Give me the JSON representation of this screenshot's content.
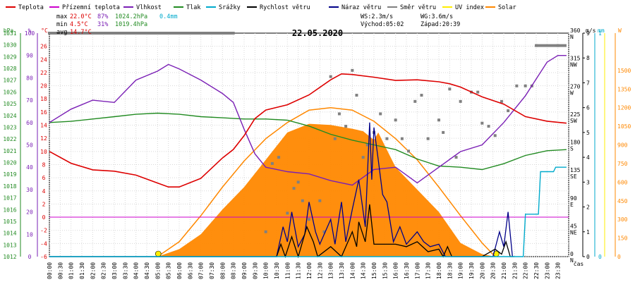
{
  "legend": [
    {
      "label": "Teplota",
      "color": "#dd0000"
    },
    {
      "label": "Přízemní teplota",
      "color": "#cc00cc"
    },
    {
      "label": "Vlhkost",
      "color": "#7a1fb5"
    },
    {
      "label": "Tlak",
      "color": "#228b22"
    },
    {
      "label": "Srážky",
      "color": "#00aacc"
    },
    {
      "label": "Rychlost větru",
      "color": "#000000"
    },
    {
      "label": "Náraz větru",
      "color": "#000088"
    },
    {
      "label": "Směr větru",
      "color": "#808080"
    },
    {
      "label": "UV index",
      "color": "#ffee00"
    },
    {
      "label": "Solar",
      "color": "#ff8800"
    }
  ],
  "stats": {
    "max": {
      "label": "max",
      "temp": "22.0°C",
      "hum": "87%",
      "press": "1024.2hPa",
      "rain": "0.4mm"
    },
    "min": {
      "label": "min",
      "temp": "4.5°C",
      "hum": "31%",
      "press": "1019.4hPa"
    },
    "avg": {
      "label": "avg",
      "temp": "14.7°C"
    }
  },
  "wind_info": {
    "ws": "WS:2.3m/s",
    "wg": "WG:3.6m/s",
    "sunrise": "Východ:05:02",
    "sunset": "Západ:20:39"
  },
  "date": "22.05.2020",
  "axis_units": {
    "hpa": "hPa",
    "pct": "%",
    "degc": "°C",
    "ms": "m/s",
    "mm": "mm",
    "w": "W",
    "time": "čas"
  },
  "colors": {
    "temp": "#dd0000",
    "hum": "#7a1fb5",
    "press": "#228b22",
    "rain": "#00aacc",
    "wind": "#000000",
    "gust": "#000088",
    "dir": "#808080",
    "solar": "#ff8800",
    "uv": "#ffee00",
    "zero": "#cc00cc"
  },
  "chart_data": {
    "type": "line",
    "x_label": "čas",
    "x_ticks": [
      "00:00",
      "00:30",
      "01:00",
      "01:30",
      "02:00",
      "02:30",
      "03:00",
      "03:30",
      "04:00",
      "04:30",
      "05:00",
      "05:30",
      "06:00",
      "06:30",
      "07:00",
      "07:30",
      "08:00",
      "08:30",
      "09:00",
      "09:30",
      "10:00",
      "10:30",
      "11:00",
      "11:30",
      "12:00",
      "12:30",
      "13:00",
      "13:30",
      "14:00",
      "14:30",
      "15:00",
      "15:30",
      "16:00",
      "16:30",
      "17:00",
      "17:30",
      "18:00",
      "18:30",
      "19:00",
      "19:30",
      "20:00",
      "20:30",
      "21:00",
      "21:30",
      "22:00",
      "22:30",
      "23:00",
      "23:30"
    ],
    "axes": {
      "pressure_hpa": {
        "range": [
          1012,
          1031
        ],
        "ticks": [
          1012,
          1013,
          1014,
          1015,
          1016,
          1017,
          1018,
          1019,
          1020,
          1021,
          1022,
          1023,
          1024,
          1025,
          1026,
          1027,
          1028,
          1029,
          1030,
          1031
        ]
      },
      "humidity_pct": {
        "range": [
          0,
          100
        ],
        "ticks": [
          0,
          10,
          20,
          30,
          40,
          50,
          60,
          70,
          80,
          90,
          100
        ]
      },
      "temperature_c": {
        "range": [
          -6,
          28
        ],
        "ticks": [
          -6,
          -4,
          -2,
          0,
          2,
          4,
          6,
          8,
          10,
          12,
          14,
          16,
          18,
          20,
          22,
          24,
          26
        ]
      },
      "wind_dir": {
        "ticks": [
          {
            "v": 0,
            "l": "N"
          },
          {
            "v": 45,
            "l": "NE"
          },
          {
            "v": 90,
            "l": "E"
          },
          {
            "v": 135,
            "l": "SE"
          },
          {
            "v": 180,
            "l": "S"
          },
          {
            "v": 225,
            "l": "SW"
          },
          {
            "v": 270,
            "l": "W"
          },
          {
            "v": 315,
            "l": "NW"
          },
          {
            "v": 360,
            "l": "N"
          }
        ]
      },
      "wind_ms": {
        "range": [
          0,
          9
        ],
        "ticks": [
          0,
          1,
          2,
          3,
          4,
          5,
          6,
          7,
          8,
          9
        ]
      },
      "rain_mm": {
        "range": [
          0,
          1
        ],
        "ticks": [
          0,
          1
        ]
      },
      "solar_w": {
        "range": [
          0,
          1800
        ],
        "ticks": [
          0,
          150,
          300,
          450,
          600,
          750,
          900,
          1050,
          1200,
          1350,
          1500
        ]
      }
    },
    "series": [
      {
        "name": "Teplota",
        "unit": "°C",
        "t": [
          0,
          1,
          2,
          3,
          4,
          5,
          5.5,
          6,
          7,
          8,
          8.5,
          9,
          9.5,
          10,
          11,
          12,
          13,
          13.5,
          14,
          15,
          16,
          17,
          18,
          18.5,
          19,
          20,
          21,
          22,
          23,
          23.9
        ],
        "y": [
          10,
          8.2,
          7.2,
          7,
          6.4,
          5.2,
          4.6,
          4.6,
          5.9,
          9,
          10.3,
          12.4,
          15,
          16.3,
          17.1,
          18.6,
          20.9,
          21.8,
          21.7,
          21.3,
          20.8,
          20.9,
          20.6,
          20.3,
          19.8,
          18.3,
          17.2,
          15.3,
          14.6,
          14.3
        ]
      },
      {
        "name": "Vlhkost",
        "unit": "%",
        "t": [
          0,
          1,
          2,
          3,
          4,
          5,
          5.5,
          6,
          7,
          8,
          8.5,
          9,
          9.5,
          10,
          11,
          12,
          13,
          14,
          15,
          16,
          17,
          18,
          19,
          20,
          21,
          22,
          23,
          23.5,
          23.9
        ],
        "y": [
          60,
          66,
          70,
          69,
          79,
          83,
          86,
          84,
          79,
          73,
          69,
          57,
          46,
          40,
          38,
          37,
          34,
          32,
          39,
          40,
          33,
          40,
          47,
          50,
          60,
          72,
          87,
          90,
          90
        ]
      },
      {
        "name": "Tlak",
        "unit": "hPa",
        "t": [
          0,
          1,
          2,
          3,
          4,
          5,
          6,
          7,
          8,
          9,
          10,
          11,
          12,
          13,
          14,
          15,
          16,
          17,
          18,
          19,
          20,
          21,
          22,
          23,
          23.9
        ],
        "y": [
          1023.4,
          1023.5,
          1023.7,
          1023.9,
          1024.1,
          1024.2,
          1024.1,
          1023.9,
          1023.8,
          1023.7,
          1023.7,
          1023.6,
          1023.1,
          1022.4,
          1021.9,
          1021.5,
          1021.1,
          1020.3,
          1019.7,
          1019.6,
          1019.4,
          1019.9,
          1020.6,
          1021,
          1021.1
        ]
      },
      {
        "name": "Srážky",
        "unit": "mm",
        "t": [
          0,
          21.5,
          21.9,
          22,
          22.6,
          22.7,
          23.3,
          23.4,
          23.9
        ],
        "y": [
          0,
          0,
          0,
          0.19,
          0.19,
          0.38,
          0.38,
          0.4,
          0.4
        ]
      },
      {
        "name": "Rychlost větru",
        "unit": "m/s",
        "t": [
          0,
          10.5,
          10.7,
          10.9,
          11.2,
          11.5,
          11.9,
          12.2,
          12.4,
          13,
          13.5,
          14,
          14.2,
          14.3,
          14.6,
          14.8,
          15,
          15.1,
          15.5,
          16,
          16.5,
          17,
          17.5,
          18,
          18.2,
          18.4,
          18.6,
          19,
          20,
          20.6,
          20.9,
          21.1,
          21.3,
          21.5
        ],
        "y": [
          0,
          0,
          0.5,
          0,
          0.8,
          0,
          1.2,
          0.6,
          0,
          0.4,
          0,
          1,
          0.4,
          1.4,
          0.6,
          2.1,
          0.5,
          0.5,
          0.5,
          0.5,
          0.4,
          0.6,
          0.2,
          0.3,
          0,
          0.4,
          0,
          0,
          0,
          0.3,
          0.1,
          0.6,
          0,
          0
        ]
      },
      {
        "name": "Náraz větru",
        "unit": "m/s",
        "t": [
          0,
          10.5,
          10.8,
          11,
          11.2,
          11.5,
          11.8,
          12,
          12.3,
          12.5,
          13,
          13.2,
          13.5,
          13.7,
          14,
          14.3,
          14.6,
          14.8,
          14.9,
          15,
          15.2,
          15.4,
          15.6,
          15.9,
          16.2,
          16.5,
          17,
          17.3,
          17.6,
          18,
          18.3,
          18.6,
          20.5,
          20.8,
          21,
          21.2,
          21.4
        ],
        "y": [
          0,
          0,
          1.2,
          0.6,
          1.8,
          0.4,
          0.9,
          2.2,
          1,
          0.5,
          1.5,
          0.5,
          2.2,
          0.6,
          1.9,
          3.1,
          1.2,
          5.4,
          3.1,
          5.2,
          3.9,
          2.5,
          2.2,
          0.6,
          1.2,
          0.5,
          1,
          0.6,
          0.4,
          0.5,
          0,
          0,
          0,
          1,
          0.4,
          1.8,
          0
        ]
      },
      {
        "name": "Směr větru",
        "unit": "°",
        "t": [
          0,
          8.5,
          10,
          10.3,
          10.6,
          11,
          11.3,
          11.5,
          11.7,
          12,
          12.5,
          12.7,
          13,
          13.2,
          13.4,
          13.7,
          14,
          14.2,
          14.5,
          14.7,
          15,
          15.3,
          15.6,
          16,
          16.3,
          16.6,
          16.9,
          17.2,
          17.5,
          18,
          18.2,
          18.5,
          18.8,
          19,
          19.5,
          19.8,
          20,
          20.3,
          20.6,
          20.9,
          21.2,
          21.6,
          22,
          22.3,
          22.5,
          23.5
        ],
        "y": [
          360,
          360,
          40,
          150,
          160,
          70,
          110,
          120,
          90,
          60,
          90,
          40,
          290,
          190,
          230,
          210,
          300,
          260,
          160,
          180,
          200,
          230,
          190,
          220,
          190,
          170,
          250,
          260,
          190,
          220,
          200,
          270,
          160,
          250,
          265,
          265,
          215,
          210,
          195,
          250,
          235,
          275,
          275,
          275,
          340,
          340
        ]
      },
      {
        "name": "Solar",
        "unit": "W",
        "t": [
          5,
          6,
          7,
          8,
          9,
          10,
          11,
          12,
          13,
          14,
          14.5,
          15,
          15.2,
          16,
          17,
          18,
          19,
          20,
          20.6
        ],
        "y": [
          0,
          60,
          180,
          380,
          560,
          780,
          1000,
          1070,
          1060,
          1030,
          1010,
          940,
          1000,
          720,
          540,
          360,
          110,
          20,
          0
        ]
      },
      {
        "name": "Solar max",
        "unit": "W",
        "t": [
          5,
          6,
          7,
          8,
          9,
          10,
          11,
          12,
          13,
          14,
          15,
          16,
          17,
          18,
          19,
          20,
          20.6
        ],
        "y": [
          0,
          120,
          330,
          560,
          770,
          950,
          1080,
          1180,
          1200,
          1180,
          1090,
          950,
          780,
          560,
          330,
          110,
          0
        ]
      }
    ]
  }
}
